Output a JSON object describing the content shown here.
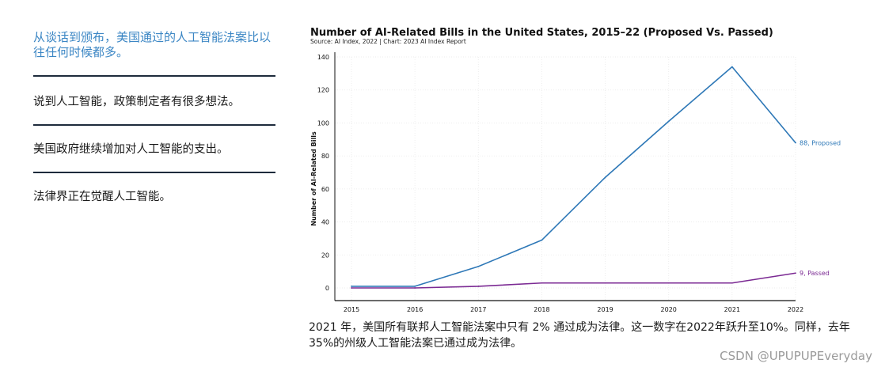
{
  "left_panel": {
    "headline": "从谈话到颁布，美国通过的人工智能法案比以往任何时候都多。",
    "bullets": [
      "说到人工智能，政策制定者有很多想法。",
      "美国政府继续增加对人工智能的支出。",
      "法律界正在觉醒人工智能。"
    ]
  },
  "chart_data": {
    "type": "line",
    "title": "Number of AI-Related Bills in the United States, 2015–22 (Proposed Vs. Passed)",
    "subtitle": "Source: AI Index, 2022 | Chart: 2023 AI Index Report",
    "xlabel": "",
    "ylabel": "Number of AI-Related Bills",
    "x": [
      2015,
      2016,
      2017,
      2018,
      2019,
      2020,
      2021,
      2022
    ],
    "ylim": [
      0,
      140
    ],
    "yticks": [
      0,
      20,
      40,
      60,
      80,
      100,
      120,
      140
    ],
    "grid": true,
    "series": [
      {
        "name": "Proposed",
        "color": "#2e78b7",
        "values": [
          1,
          1,
          13,
          29,
          67,
          101,
          134,
          88
        ],
        "end_label": "88, Proposed"
      },
      {
        "name": "Passed",
        "color": "#7b2a93",
        "values": [
          0,
          0,
          1,
          3,
          3,
          3,
          3,
          9
        ],
        "end_label": "9, Passed"
      }
    ]
  },
  "caption": "2021 年，美国所有联邦人工智能法案中只有 2% 通过成为法律。这一数字在2022年跃升至10%。同样，去年35%的州级人工智能法案已通过成为法律。",
  "watermark": "CSDN @UPUPUPEveryday"
}
